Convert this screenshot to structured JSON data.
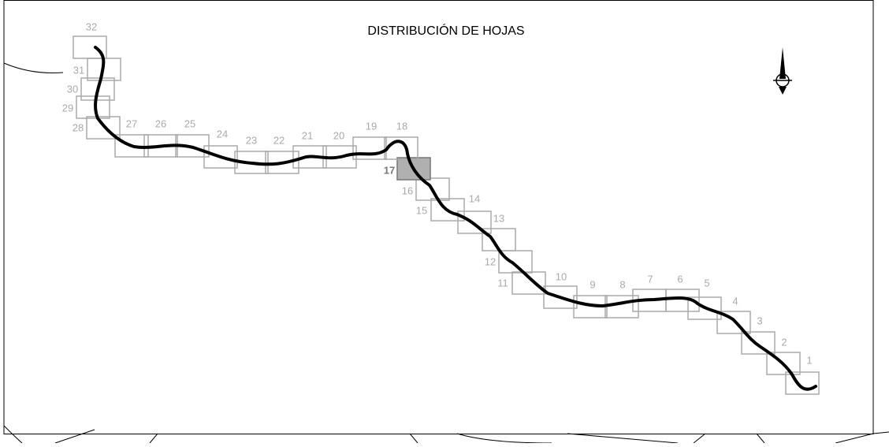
{
  "header": {
    "title": "DISTRIBUCIÓN DE HOJAS"
  },
  "sheets": [
    "1",
    "2",
    "3",
    "4",
    "5",
    "6",
    "7",
    "8",
    "9",
    "10",
    "11",
    "12",
    "13",
    "14",
    "15",
    "16",
    "17",
    "18",
    "19",
    "20",
    "21",
    "22",
    "23",
    "24",
    "25",
    "26",
    "27",
    "28",
    "29",
    "30",
    "31",
    "32"
  ],
  "selected_sheet": "17"
}
